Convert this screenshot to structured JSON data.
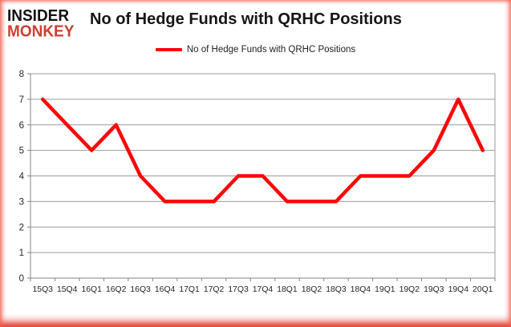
{
  "header": {
    "logo_line1": "INSIDER",
    "logo_line2": "MONKEY",
    "title": "No of Hedge Funds with QRHC Positions"
  },
  "legend": {
    "label": "No of Hedge Funds with QRHC Positions"
  },
  "colors": {
    "line_red": "#fe0505",
    "logo_red": "#c94130",
    "grid_gray": "#9b9b9b",
    "axis_gray": "#868686",
    "label_dark": "#262626",
    "border_glow_red": "#de1405"
  },
  "chart_data": {
    "type": "line",
    "title": "No of Hedge Funds with QRHC Positions",
    "categories": [
      "15Q3",
      "15Q4",
      "16Q1",
      "16Q2",
      "16Q3",
      "16Q4",
      "17Q1",
      "17Q2",
      "17Q3",
      "17Q4",
      "18Q1",
      "18Q2",
      "18Q3",
      "18Q4",
      "19Q1",
      "19Q2",
      "19Q3",
      "19Q4",
      "20Q1"
    ],
    "values": [
      7,
      6,
      5,
      6,
      4,
      3,
      3,
      3,
      4,
      4,
      3,
      3,
      3,
      4,
      4,
      4,
      5,
      7,
      5
    ],
    "xlabel": "",
    "ylabel": "",
    "ylim": [
      0,
      8
    ],
    "yticks": [
      0,
      1,
      2,
      3,
      4,
      5,
      6,
      7,
      8
    ],
    "grid": true,
    "legend_position": "top-center",
    "line_color": "#fe0505"
  }
}
